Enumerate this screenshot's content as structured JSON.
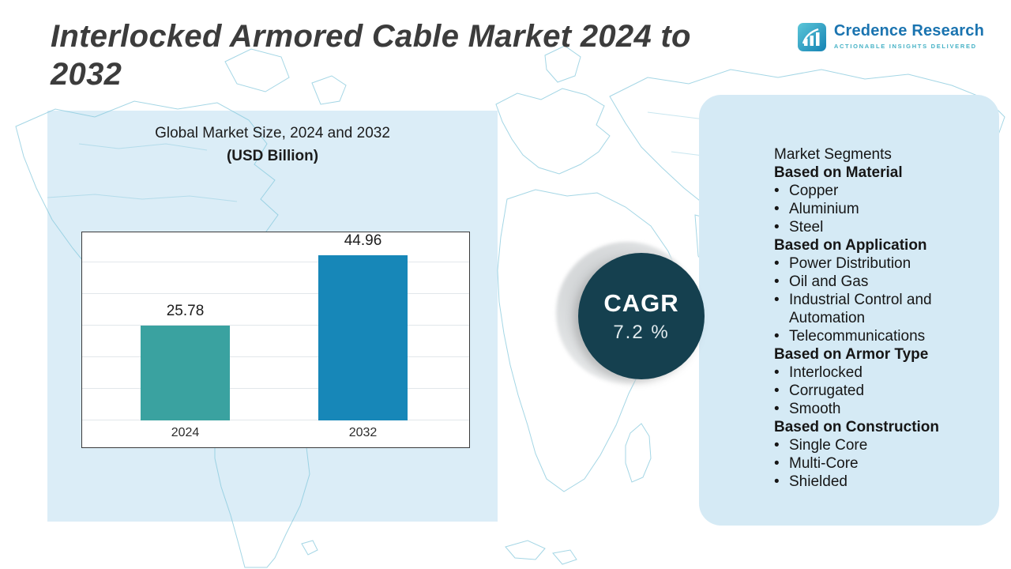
{
  "page": {
    "title": "Interlocked Armored Cable Market 2024 to 2032"
  },
  "logo": {
    "name": "Credence Research",
    "tagline": "Actionable Insights Delivered"
  },
  "chart_panel": {
    "subtitle_line1": "Global Market Size, 2024 and 2032",
    "subtitle_line2": "(USD Billion)"
  },
  "chart_data": {
    "type": "bar",
    "title": "Global Market Size, 2024 and 2032 (USD Billion)",
    "categories": [
      "2024",
      "2032"
    ],
    "values": [
      25.78,
      44.96
    ],
    "ylabel": "USD Billion",
    "xlabel": "",
    "ylim": [
      0,
      50
    ],
    "grid": true,
    "legend": "none",
    "colors": [
      "#3aa2a0",
      "#1787b8"
    ]
  },
  "cagr": {
    "label": "CAGR",
    "value": "7.2 %"
  },
  "segments": {
    "title": "Market Segments",
    "groups": [
      {
        "heading": "Based on Material",
        "items": [
          "Copper",
          "Aluminium",
          "Steel"
        ]
      },
      {
        "heading": "Based on Application",
        "items": [
          "Power Distribution",
          "Oil and Gas",
          "Industrial Control and Automation",
          "Telecommunications"
        ]
      },
      {
        "heading": "Based on Armor Type",
        "items": [
          "Interlocked",
          "Corrugated",
          "Smooth"
        ]
      },
      {
        "heading": "Based on Construction",
        "items": [
          "Single Core",
          "Multi-Core",
          "Shielded"
        ]
      }
    ]
  },
  "colors": {
    "bar_2024": "#3aa2a0",
    "bar_2032": "#1787b8",
    "cagr_circle": "#15404f",
    "panel_bg": "#d5eaf5",
    "map_line": "#86c8dc",
    "logo_blue": "#1b74b0",
    "logo_teal": "#46b2c6"
  }
}
